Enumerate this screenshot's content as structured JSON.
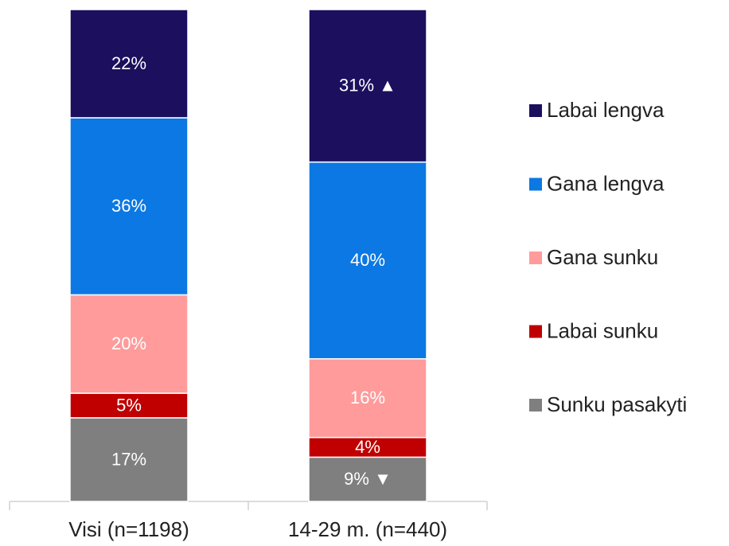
{
  "chart_data": {
    "type": "stacked_bar",
    "categories": [
      "Visi (n=1198)",
      "14-29 m. (n=440)"
    ],
    "ylim": [
      0,
      100
    ],
    "series": [
      {
        "name": "Labai lengva",
        "color": "#1b0f5e",
        "values": [
          22,
          31
        ],
        "value_labels": [
          "22%",
          "31% ▲"
        ]
      },
      {
        "name": "Gana lengva",
        "color": "#0b78e3",
        "values": [
          36,
          40
        ],
        "value_labels": [
          "36%",
          "40%"
        ]
      },
      {
        "name": "Gana sunku",
        "color": "#ff9b9b",
        "values": [
          20,
          16
        ],
        "value_labels": [
          "20%",
          "16%"
        ]
      },
      {
        "name": "Labai sunku",
        "color": "#c00000",
        "values": [
          5,
          4
        ],
        "value_labels": [
          "5%",
          "4%"
        ]
      },
      {
        "name": "Sunku pasakyti",
        "color": "#7f7f7f",
        "values": [
          17,
          9
        ],
        "value_labels": [
          "17%",
          "9% ▼"
        ]
      }
    ],
    "legend": "right"
  }
}
